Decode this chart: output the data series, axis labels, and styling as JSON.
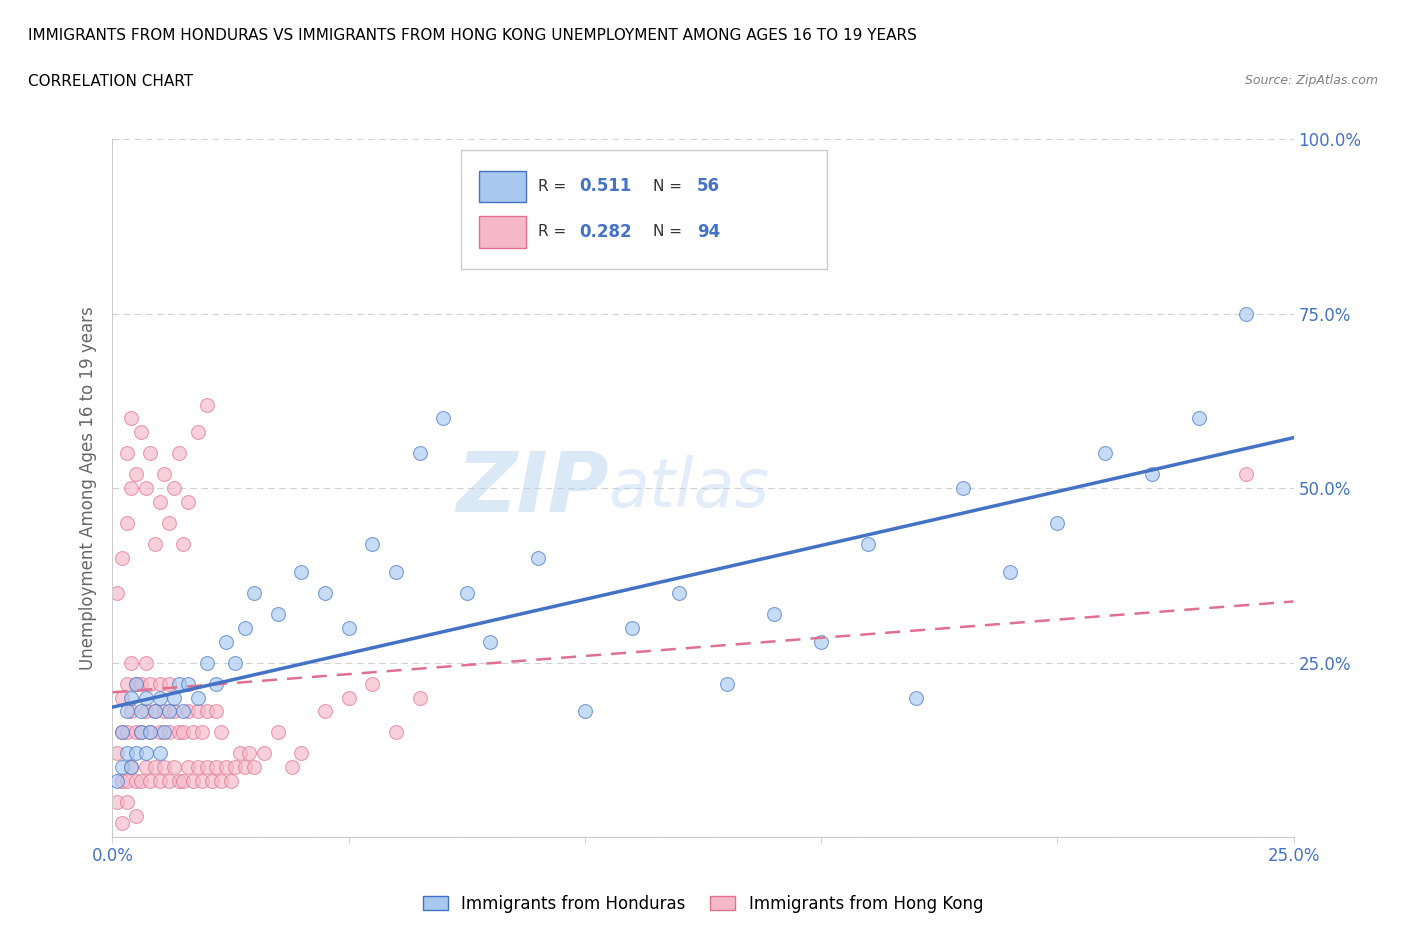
{
  "title_line1": "IMMIGRANTS FROM HONDURAS VS IMMIGRANTS FROM HONG KONG UNEMPLOYMENT AMONG AGES 16 TO 19 YEARS",
  "title_line2": "CORRELATION CHART",
  "source": "Source: ZipAtlas.com",
  "ylabel": "Unemployment Among Ages 16 to 19 years",
  "R_honduras": 0.511,
  "N_honduras": 56,
  "R_hongkong": 0.282,
  "N_hongkong": 94,
  "color_honduras": "#a8c8f0",
  "color_hongkong": "#f5b8c8",
  "line_color_honduras": "#4472c4",
  "line_color_hongkong": "#e07090",
  "xlim": [
    0.0,
    0.25
  ],
  "ylim": [
    0.0,
    1.0
  ],
  "xticks": [
    0.0,
    0.05,
    0.1,
    0.15,
    0.2,
    0.25
  ],
  "xtick_labels": [
    "0.0%",
    "",
    "",
    "",
    "",
    "25.0%"
  ],
  "ytick_positions": [
    0.0,
    0.25,
    0.5,
    0.75,
    1.0
  ],
  "ytick_labels": [
    "",
    "25.0%",
    "50.0%",
    "75.0%",
    "100.0%"
  ],
  "watermark": "ZIPatlas",
  "honduras_x": [
    0.001,
    0.002,
    0.002,
    0.003,
    0.003,
    0.004,
    0.004,
    0.005,
    0.005,
    0.006,
    0.006,
    0.007,
    0.007,
    0.008,
    0.009,
    0.01,
    0.01,
    0.011,
    0.012,
    0.013,
    0.014,
    0.015,
    0.016,
    0.018,
    0.02,
    0.022,
    0.024,
    0.026,
    0.028,
    0.03,
    0.035,
    0.04,
    0.045,
    0.05,
    0.055,
    0.06,
    0.065,
    0.07,
    0.075,
    0.08,
    0.09,
    0.1,
    0.11,
    0.12,
    0.13,
    0.14,
    0.15,
    0.16,
    0.17,
    0.18,
    0.19,
    0.2,
    0.21,
    0.22,
    0.23,
    0.24
  ],
  "honduras_y": [
    0.08,
    0.1,
    0.15,
    0.12,
    0.18,
    0.1,
    0.2,
    0.12,
    0.22,
    0.15,
    0.18,
    0.12,
    0.2,
    0.15,
    0.18,
    0.12,
    0.2,
    0.15,
    0.18,
    0.2,
    0.22,
    0.18,
    0.22,
    0.2,
    0.25,
    0.22,
    0.28,
    0.25,
    0.3,
    0.35,
    0.32,
    0.38,
    0.35,
    0.3,
    0.42,
    0.38,
    0.55,
    0.6,
    0.35,
    0.28,
    0.4,
    0.18,
    0.3,
    0.35,
    0.22,
    0.32,
    0.28,
    0.42,
    0.2,
    0.5,
    0.38,
    0.45,
    0.55,
    0.52,
    0.6,
    0.75
  ],
  "hongkong_x": [
    0.001,
    0.001,
    0.002,
    0.002,
    0.002,
    0.003,
    0.003,
    0.003,
    0.004,
    0.004,
    0.004,
    0.005,
    0.005,
    0.005,
    0.006,
    0.006,
    0.006,
    0.007,
    0.007,
    0.007,
    0.008,
    0.008,
    0.008,
    0.009,
    0.009,
    0.01,
    0.01,
    0.01,
    0.011,
    0.011,
    0.012,
    0.012,
    0.012,
    0.013,
    0.013,
    0.014,
    0.014,
    0.015,
    0.015,
    0.016,
    0.016,
    0.017,
    0.017,
    0.018,
    0.018,
    0.019,
    0.019,
    0.02,
    0.02,
    0.021,
    0.022,
    0.022,
    0.023,
    0.023,
    0.024,
    0.025,
    0.026,
    0.027,
    0.028,
    0.029,
    0.03,
    0.032,
    0.035,
    0.038,
    0.04,
    0.045,
    0.05,
    0.055,
    0.06,
    0.065,
    0.001,
    0.002,
    0.003,
    0.004,
    0.003,
    0.004,
    0.005,
    0.006,
    0.007,
    0.008,
    0.009,
    0.01,
    0.011,
    0.012,
    0.013,
    0.014,
    0.015,
    0.016,
    0.018,
    0.02,
    0.002,
    0.003,
    0.005,
    0.24
  ],
  "hongkong_y": [
    0.05,
    0.12,
    0.08,
    0.15,
    0.2,
    0.08,
    0.15,
    0.22,
    0.1,
    0.18,
    0.25,
    0.08,
    0.15,
    0.22,
    0.08,
    0.15,
    0.22,
    0.1,
    0.18,
    0.25,
    0.08,
    0.15,
    0.22,
    0.1,
    0.18,
    0.08,
    0.15,
    0.22,
    0.1,
    0.18,
    0.08,
    0.15,
    0.22,
    0.1,
    0.18,
    0.08,
    0.15,
    0.08,
    0.15,
    0.1,
    0.18,
    0.08,
    0.15,
    0.1,
    0.18,
    0.08,
    0.15,
    0.1,
    0.18,
    0.08,
    0.1,
    0.18,
    0.08,
    0.15,
    0.1,
    0.08,
    0.1,
    0.12,
    0.1,
    0.12,
    0.1,
    0.12,
    0.15,
    0.1,
    0.12,
    0.18,
    0.2,
    0.22,
    0.15,
    0.2,
    0.35,
    0.4,
    0.45,
    0.5,
    0.55,
    0.6,
    0.52,
    0.58,
    0.5,
    0.55,
    0.42,
    0.48,
    0.52,
    0.45,
    0.5,
    0.55,
    0.42,
    0.48,
    0.58,
    0.62,
    0.02,
    0.05,
    0.03,
    0.52
  ]
}
